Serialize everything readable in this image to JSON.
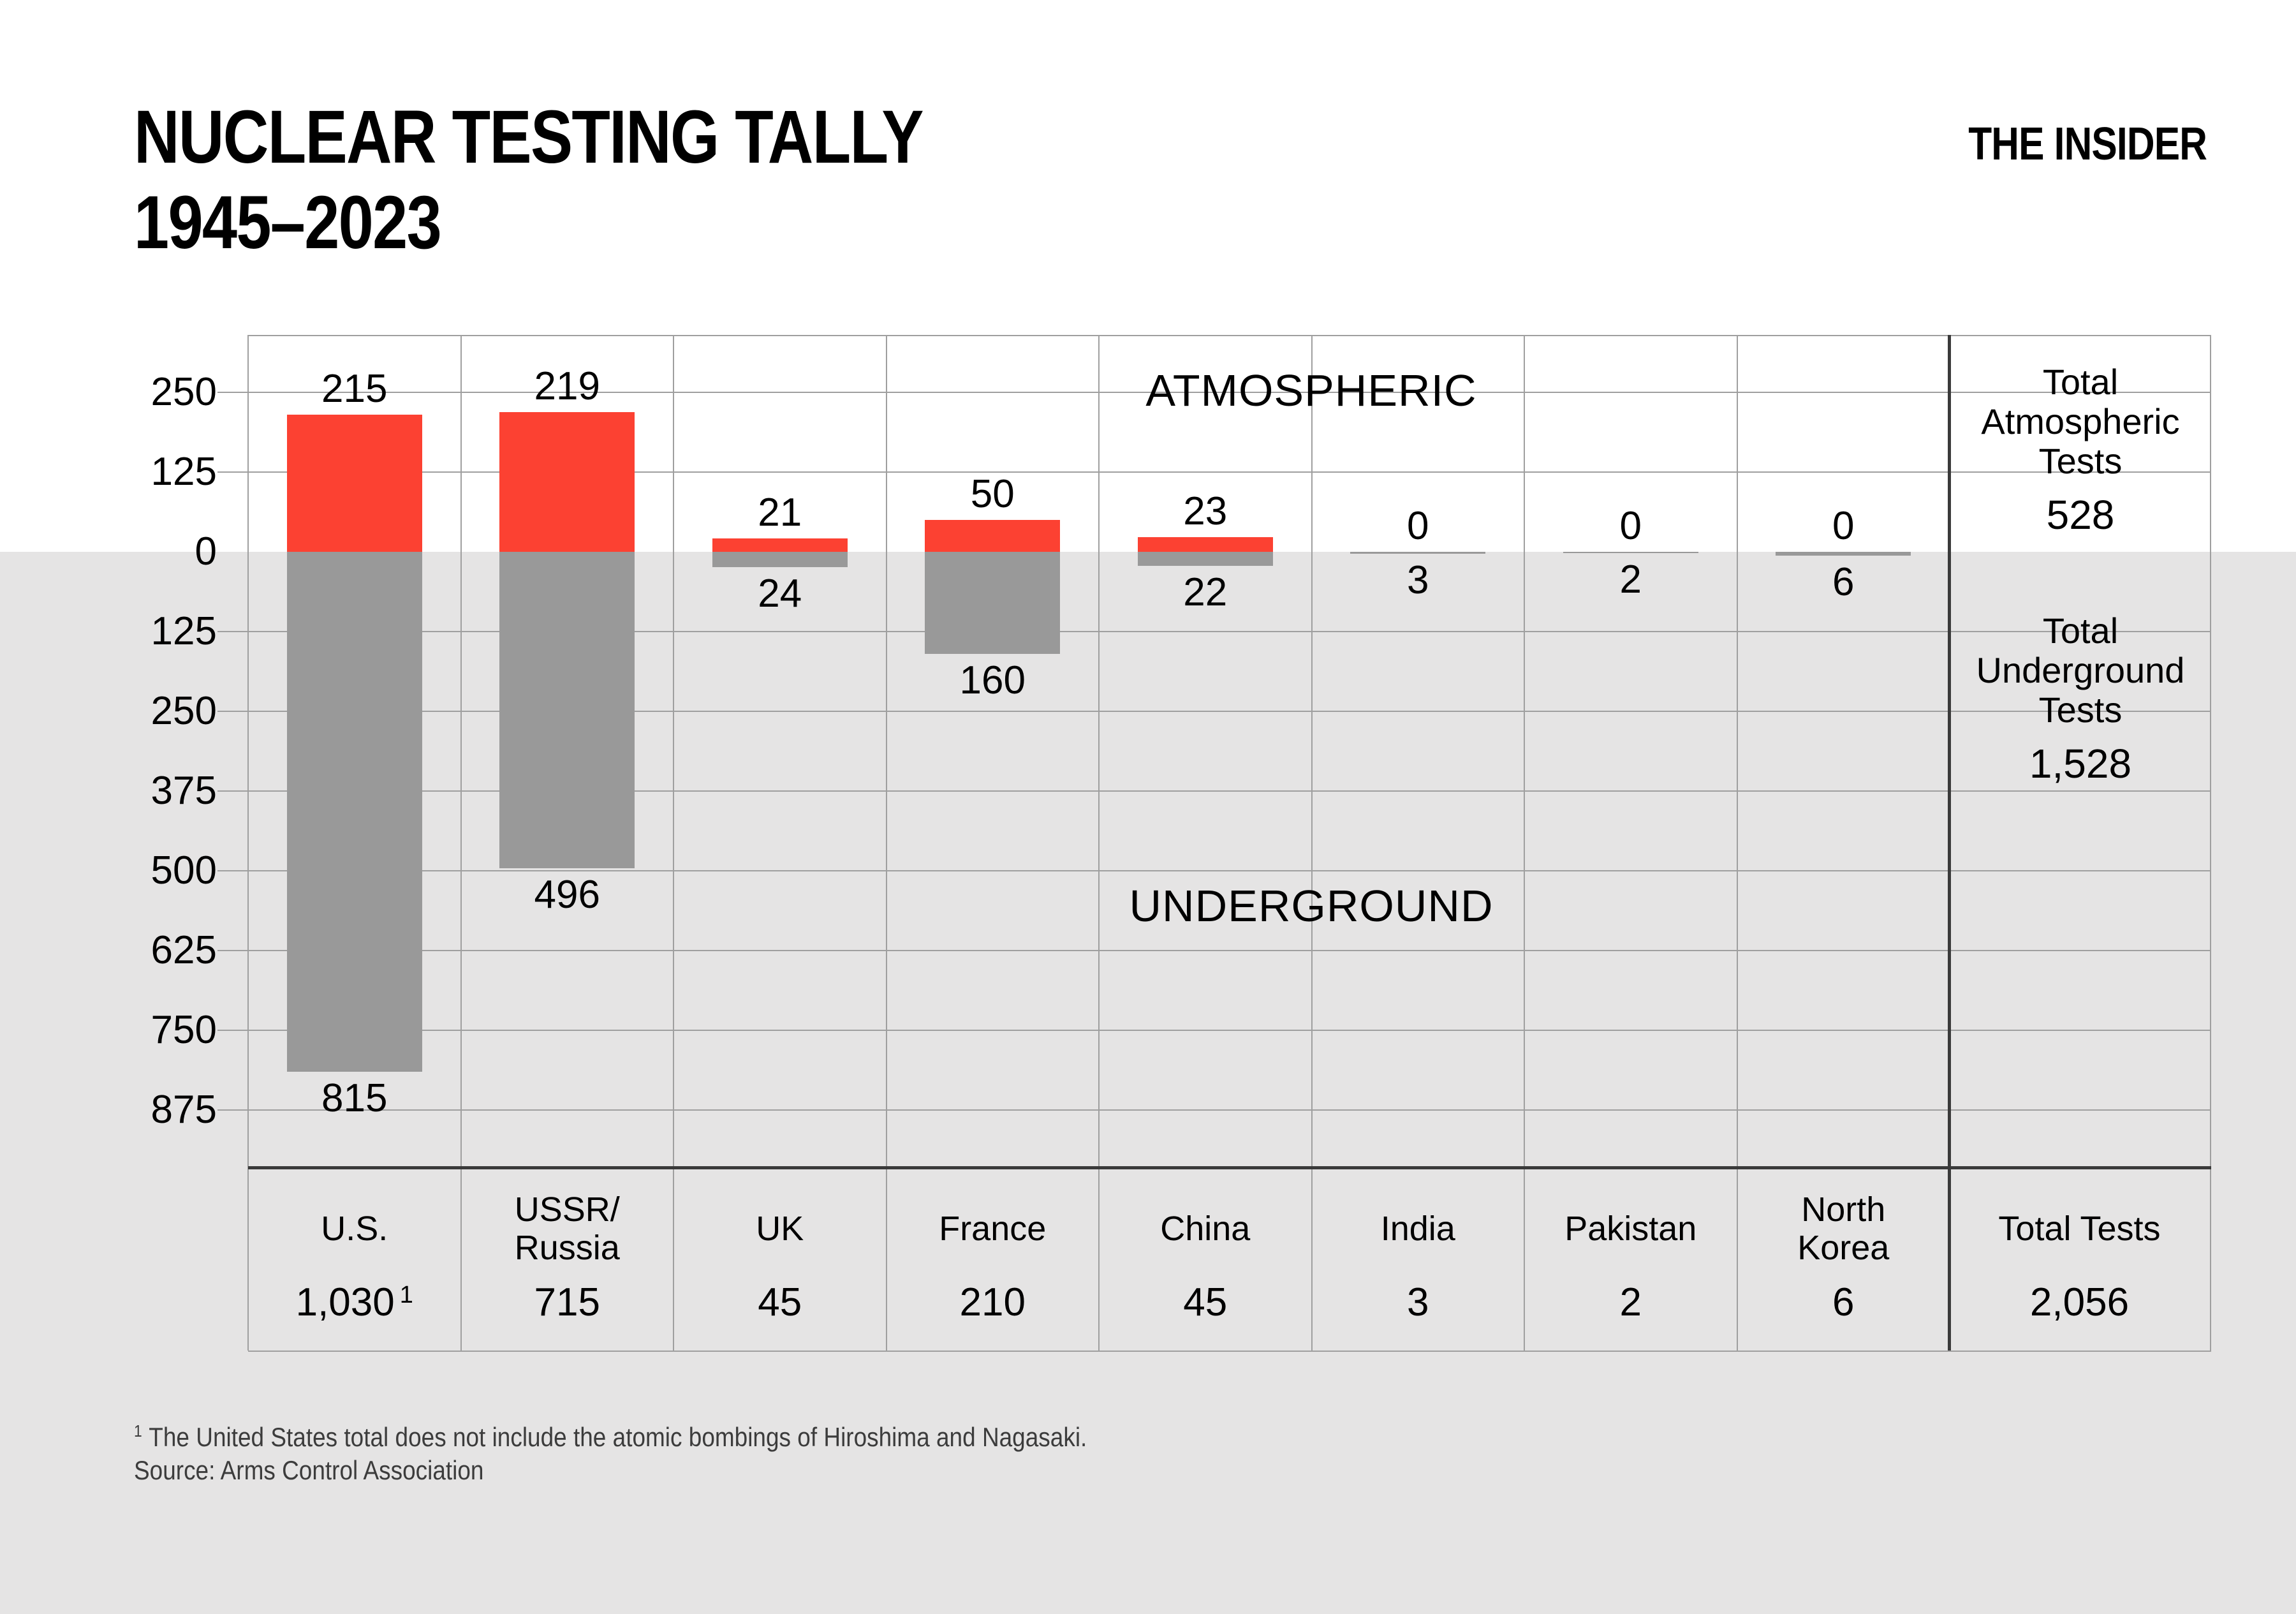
{
  "header": {
    "title_line1": "NUCLEAR TESTING TALLY",
    "title_line2": "1945–2023",
    "logo": "THE INSIDER"
  },
  "footnotes": {
    "note1_marker": "1",
    "note1_text": "The United States total does not include the atomic bombings of Hiroshima and Nagasaki.",
    "source": "Source: Arms Control Association"
  },
  "chart_data": {
    "type": "bar",
    "variant": "diverging-stacked-columns",
    "title": "NUCLEAR TESTING TALLY 1945–2023",
    "region_labels": {
      "above": "ATMOSPHERIC",
      "below": "UNDERGROUND"
    },
    "y_axis": {
      "unit": "number of tests",
      "tick_interval": 125,
      "ticks_above_zero": [
        250,
        125
      ],
      "zero_tick": "0",
      "ticks_below_zero": [
        125,
        250,
        375,
        500,
        625,
        750,
        875
      ],
      "grid": true
    },
    "categories": [
      "U.S.",
      "USSR/Russia",
      "UK",
      "France",
      "China",
      "India",
      "Pakistan",
      "North Korea"
    ],
    "series": [
      {
        "name": "Atmospheric",
        "color": "#fc4132",
        "values": [
          215,
          219,
          21,
          50,
          23,
          0,
          0,
          0
        ]
      },
      {
        "name": "Underground",
        "color": "#999999",
        "values": [
          815,
          496,
          24,
          160,
          22,
          3,
          2,
          6
        ]
      }
    ],
    "countries": [
      {
        "slug": "us",
        "name_lines": [
          "U.S."
        ],
        "atmospheric": 215,
        "underground": 815,
        "total": "1,030",
        "total_marker": "1"
      },
      {
        "slug": "ussr-russia",
        "name_lines": [
          "USSR/",
          "Russia"
        ],
        "atmospheric": 219,
        "underground": 496,
        "total": "715"
      },
      {
        "slug": "uk",
        "name_lines": [
          "UK"
        ],
        "atmospheric": 21,
        "underground": 24,
        "total": "45"
      },
      {
        "slug": "france",
        "name_lines": [
          "France"
        ],
        "atmospheric": 50,
        "underground": 160,
        "total": "210"
      },
      {
        "slug": "china",
        "name_lines": [
          "China"
        ],
        "atmospheric": 23,
        "underground": 22,
        "total": "45"
      },
      {
        "slug": "india",
        "name_lines": [
          "India"
        ],
        "atmospheric": 0,
        "underground": 3,
        "total": "3"
      },
      {
        "slug": "pakistan",
        "name_lines": [
          "Pakistan"
        ],
        "atmospheric": 0,
        "underground": 2,
        "total": "2"
      },
      {
        "slug": "north-korea",
        "name_lines": [
          "North",
          "Korea"
        ],
        "atmospheric": 0,
        "underground": 6,
        "total": "6"
      }
    ],
    "summary_column": {
      "atmospheric_label_lines": [
        "Total",
        "Atmospheric",
        "Tests"
      ],
      "atmospheric_total": "528",
      "underground_label_lines": [
        "Total",
        "Underground",
        "Tests"
      ],
      "underground_total": "1,528",
      "grand_total_label": "Total Tests",
      "grand_total": "2,056"
    },
    "colors": {
      "atmospheric_bar": "#fc4132",
      "underground_bar": "#999999",
      "below_ground_background": "#e5e4e4",
      "gridline": "#9f9f9f",
      "divider_strong": "#3a3a3a",
      "text": "#000000",
      "footnote_text": "#3c3c3c"
    }
  }
}
